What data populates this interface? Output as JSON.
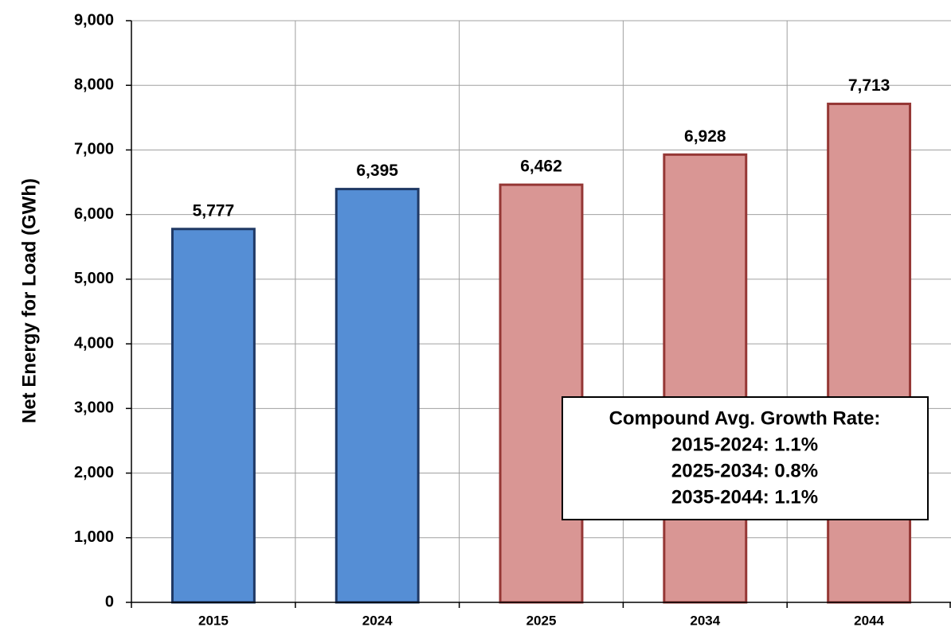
{
  "chart_data": {
    "type": "bar",
    "y_label": "Net Energy for Load (GWh)",
    "categories": [
      "2015",
      "2024",
      "2025",
      "2034",
      "2044"
    ],
    "values": [
      5777,
      6395,
      6462,
      6928,
      7713
    ],
    "value_labels": [
      "5,777",
      "6,395",
      "6,462",
      "6,928",
      "7,713"
    ],
    "colors": [
      "#558ed5",
      "#558ed5",
      "#d99694",
      "#d99694",
      "#d99694"
    ],
    "edge_colors": [
      "#1f3864",
      "#1f3864",
      "#953735",
      "#953735",
      "#953735"
    ],
    "ylim": [
      0,
      9000
    ],
    "yticks": [
      0,
      {
        "value": 1000,
        "label": "1,000"
      },
      {
        "value": 2000,
        "label": "2,000"
      },
      {
        "value": 3000,
        "label": "3,000"
      },
      {
        "value": 4000,
        "label": "4,000"
      },
      {
        "value": 5000,
        "label": "5,000"
      },
      {
        "value": 6000,
        "label": "6,000"
      },
      {
        "value": 7000,
        "label": "7,000"
      },
      {
        "value": 8000,
        "label": "8,000"
      },
      {
        "value": 9000,
        "label": "9,000"
      }
    ],
    "grid": true,
    "annotation": [
      "Compound Avg. Growth Rate:",
      "2015-2024: 1.1%",
      "2025-2034: 0.8%",
      "2035-2044: 1.1%"
    ]
  }
}
